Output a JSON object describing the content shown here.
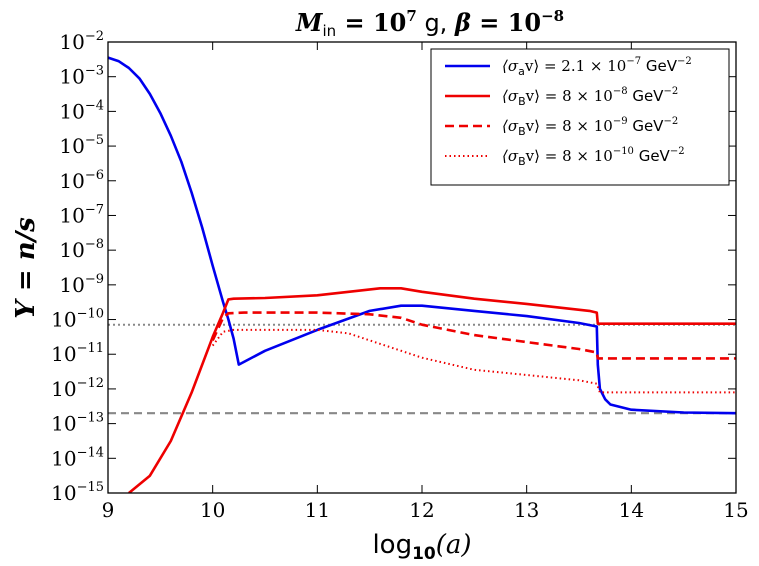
{
  "chart_data": {
    "type": "line",
    "title": "M_in = 10^7 g, β = 10^-8",
    "title_parts": {
      "m": "M",
      "sub": "in",
      "eq": " = 10",
      "exp1": "7",
      "unit": " g, ",
      "beta": "β",
      "eq2": " = 10",
      "exp2": "−8"
    },
    "xlabel": "log10(a)",
    "xlabel_parts": {
      "main": "log",
      "sub": "10",
      "arg": "(a)"
    },
    "ylabel": "Y = n/s",
    "xlim": [
      9,
      15
    ],
    "ylim_log10": [
      -15,
      -2
    ],
    "x_ticks": [
      "9",
      "10",
      "11",
      "12",
      "13",
      "14",
      "15"
    ],
    "y_ticks": [
      {
        "exp": "−2",
        "v": -2
      },
      {
        "exp": "−3",
        "v": -3
      },
      {
        "exp": "−4",
        "v": -4
      },
      {
        "exp": "−5",
        "v": -5
      },
      {
        "exp": "−6",
        "v": -6
      },
      {
        "exp": "−7",
        "v": -7
      },
      {
        "exp": "−8",
        "v": -8
      },
      {
        "exp": "−9",
        "v": -9
      },
      {
        "exp": "−10",
        "v": -10
      },
      {
        "exp": "−11",
        "v": -11
      },
      {
        "exp": "−12",
        "v": -12
      },
      {
        "exp": "−13",
        "v": -13
      },
      {
        "exp": "−14",
        "v": -14
      },
      {
        "exp": "−15",
        "v": -15
      }
    ],
    "y_tick_base": "10",
    "reference_lines": [
      {
        "name": "gray-dotted-reference",
        "log10_y": -10.15,
        "color": "#888888",
        "style": "dotted"
      },
      {
        "name": "gray-dashed-reference",
        "log10_y": -12.7,
        "color": "#888888",
        "style": "dashed"
      }
    ],
    "series": [
      {
        "name": "⟨σ_a v⟩ = 2.1 × 10^-7 GeV^-2",
        "legend": {
          "sym": "⟨σ",
          "sub": "a",
          "rest": "v⟩ = 2.1 × 10",
          "exp": "−7",
          "unit": " GeV",
          "uexp": "−2"
        },
        "color": "#0000ee",
        "style": "solid",
        "x": [
          9.0,
          9.1,
          9.2,
          9.3,
          9.4,
          9.5,
          9.6,
          9.7,
          9.8,
          9.9,
          10.0,
          10.1,
          10.15,
          10.2,
          10.25,
          10.5,
          11.0,
          11.5,
          11.8,
          12.0,
          12.5,
          13.0,
          13.5,
          13.67,
          13.68,
          13.7,
          13.75,
          13.8,
          14.0,
          14.5,
          15.0
        ],
        "log10_y": [
          -2.45,
          -2.55,
          -2.75,
          -3.05,
          -3.5,
          -4.05,
          -4.7,
          -5.45,
          -6.35,
          -7.35,
          -8.45,
          -9.5,
          -10.0,
          -10.55,
          -11.3,
          -10.9,
          -10.3,
          -9.75,
          -9.6,
          -9.6,
          -9.75,
          -9.9,
          -10.1,
          -10.2,
          -11.3,
          -12.0,
          -12.3,
          -12.45,
          -12.6,
          -12.68,
          -12.7
        ]
      },
      {
        "name": "⟨σ_B v⟩ = 8 × 10^-8 GeV^-2",
        "legend": {
          "sym": "⟨σ",
          "sub": "B",
          "rest": "v⟩ = 8 × 10",
          "exp": "−8",
          "unit": " GeV",
          "uexp": "−2"
        },
        "color": "#ee0000",
        "style": "solid",
        "x": [
          9.2,
          9.4,
          9.6,
          9.8,
          10.0,
          10.1,
          10.15,
          10.2,
          10.5,
          11.0,
          11.3,
          11.6,
          11.8,
          12.0,
          12.5,
          13.0,
          13.6,
          13.67,
          13.68,
          14.0,
          15.0
        ],
        "log10_y": [
          -15.0,
          -14.5,
          -13.5,
          -12.1,
          -10.5,
          -9.8,
          -9.42,
          -9.4,
          -9.38,
          -9.3,
          -9.2,
          -9.1,
          -9.1,
          -9.2,
          -9.4,
          -9.55,
          -9.75,
          -9.8,
          -10.12,
          -10.12,
          -10.12
        ]
      },
      {
        "name": "⟨σ_B v⟩ = 8 × 10^-9 GeV^-2",
        "legend": {
          "sym": "⟨σ",
          "sub": "B",
          "rest": "v⟩ = 8 × 10",
          "exp": "−9",
          "unit": " GeV",
          "uexp": "−2"
        },
        "color": "#ee0000",
        "style": "dashed",
        "x": [
          10.0,
          10.1,
          10.15,
          10.3,
          10.5,
          11.0,
          11.5,
          11.8,
          12.0,
          12.5,
          13.0,
          13.5,
          13.67,
          13.68,
          14.0,
          15.0
        ],
        "log10_y": [
          -10.6,
          -9.95,
          -9.82,
          -9.8,
          -9.8,
          -9.8,
          -9.85,
          -9.95,
          -10.15,
          -10.45,
          -10.65,
          -10.85,
          -10.95,
          -11.12,
          -11.12,
          -11.12
        ]
      },
      {
        "name": "⟨σ_B v⟩ = 8 × 10^-10 GeV^-2",
        "legend": {
          "sym": "⟨σ",
          "sub": "B",
          "rest": "v⟩ = 8 × 10",
          "exp": "−10",
          "unit": " GeV",
          "uexp": "−2"
        },
        "color": "#ee0000",
        "style": "dotted",
        "x": [
          10.0,
          10.1,
          10.2,
          10.5,
          11.0,
          11.3,
          11.5,
          12.0,
          12.5,
          13.0,
          13.5,
          13.67,
          13.7,
          14.0,
          15.0
        ],
        "log10_y": [
          -10.75,
          -10.35,
          -10.3,
          -10.3,
          -10.3,
          -10.4,
          -10.6,
          -11.1,
          -11.45,
          -11.6,
          -11.75,
          -11.85,
          -12.1,
          -12.1,
          -12.1
        ]
      }
    ]
  }
}
